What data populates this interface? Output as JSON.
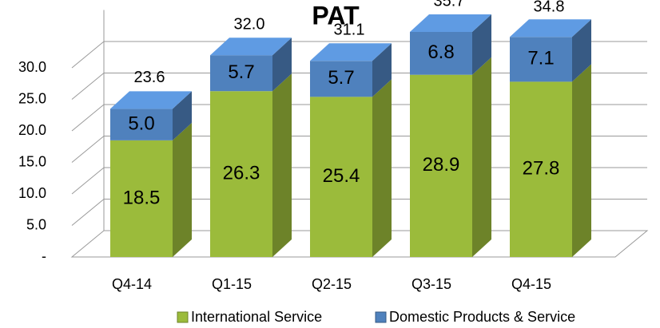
{
  "chart_data": {
    "type": "bar3d_stacked",
    "title": "PAT",
    "categories": [
      "Q4-14",
      "Q1-15",
      "Q2-15",
      "Q3-15",
      "Q4-15"
    ],
    "series": [
      {
        "name": "International Service",
        "color": "#9bbb3b",
        "values": [
          18.5,
          26.3,
          25.4,
          28.9,
          27.8
        ]
      },
      {
        "name": "Domestic Products & Service",
        "color": "#4f81bd",
        "values": [
          5.0,
          5.7,
          5.7,
          6.8,
          7.1
        ],
        "value_labels": [
          "5.0",
          "5.7",
          "5.7",
          "6.8",
          "7.1"
        ]
      }
    ],
    "totals": [
      23.6,
      32.0,
      31.1,
      35.7,
      34.8
    ],
    "total_labels": [
      "23.6",
      "32.0",
      "31.1",
      "35.7",
      "34.8"
    ],
    "ylim": [
      0,
      35
    ],
    "yticks": [
      {
        "value": 0,
        "label": "-"
      },
      {
        "value": 5,
        "label": "5.0"
      },
      {
        "value": 10,
        "label": "10.0"
      },
      {
        "value": 15,
        "label": "15.0"
      },
      {
        "value": 20,
        "label": "20.0"
      },
      {
        "value": 25,
        "label": "25.0"
      },
      {
        "value": 30,
        "label": "30.0"
      }
    ],
    "grid": true,
    "legend": "bottom"
  }
}
